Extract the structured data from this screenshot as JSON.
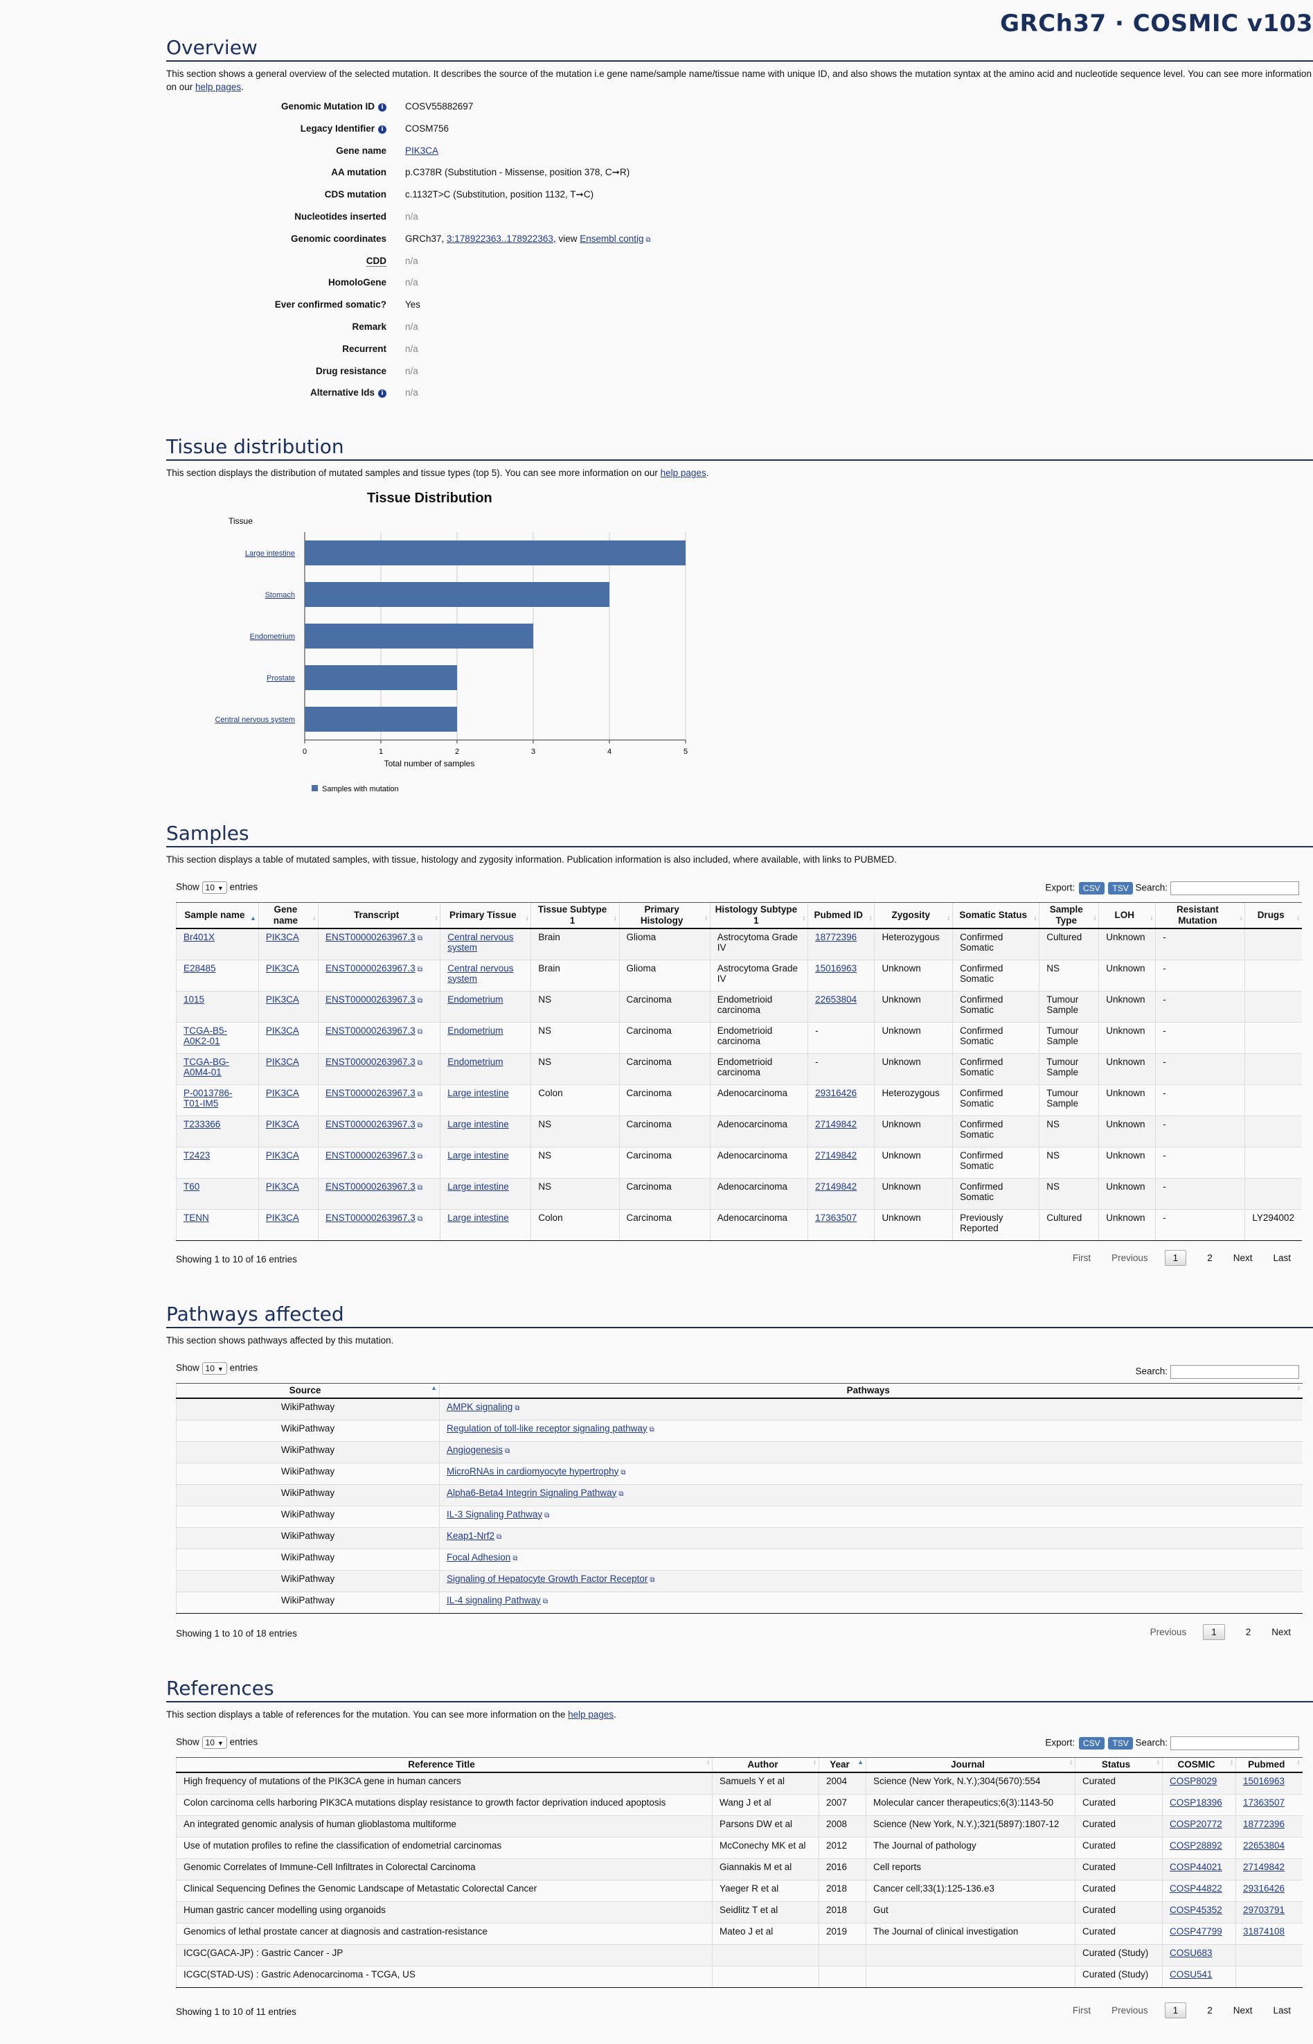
{
  "header": {
    "brand": "GRCh37 · COSMIC v103"
  },
  "overview": {
    "title": "Overview",
    "desc_pre": "This section shows a general overview of the selected mutation. It describes the source of the mutation i.e gene name/sample name/tissue name with unique ID, and also shows the mutation syntax at the amino acid and nucleotide sequence level. You can see more information on our ",
    "desc_link": "help pages",
    "desc_post": ".",
    "fields": [
      {
        "label": "Genomic Mutation ID",
        "info": true,
        "value": "COSV55882697"
      },
      {
        "label": "Legacy Identifier",
        "info": true,
        "value": "COSM756"
      },
      {
        "label": "Gene name",
        "value": "PIK3CA",
        "link": true
      },
      {
        "label": "AA mutation",
        "value": "p.C378R (Substitution - Missense, position 378, C➞R)"
      },
      {
        "label": "CDS mutation",
        "value": "c.1132T>C (Substitution, position 1132, T➞C)"
      },
      {
        "label": "Nucleotides inserted",
        "value": "n/a",
        "na": true
      },
      {
        "label": "Genomic coordinates",
        "value": "",
        "coord": true
      },
      {
        "label": "CDD",
        "value": "n/a",
        "na": true,
        "abbr": true
      },
      {
        "label": "HomoloGene",
        "value": "n/a",
        "na": true
      },
      {
        "label": "Ever confirmed somatic?",
        "value": "Yes"
      },
      {
        "label": "Remark",
        "value": "n/a",
        "na": true
      },
      {
        "label": "Recurrent",
        "value": "n/a",
        "na": true
      },
      {
        "label": "Drug resistance",
        "value": "n/a",
        "na": true
      },
      {
        "label": "Alternative Ids",
        "info": true,
        "value": "n/a",
        "na": true
      }
    ],
    "coords": {
      "prefix": "GRCh37, ",
      "link": "3:178922363..178922363",
      "mid": ", view ",
      "ensembl": "Ensembl contig"
    }
  },
  "tissue": {
    "title": "Tissue distribution",
    "desc_pre": "This section displays the distribution of mutated samples and tissue types (top 5). You can see more information on our ",
    "desc_link": "help pages",
    "desc_post": "."
  },
  "chart_data": {
    "type": "bar",
    "orientation": "horizontal",
    "title": "Tissue Distribution",
    "ylabel": "Tissue",
    "xlabel": "Total number of samples",
    "categories": [
      "Large intestine",
      "Stomach",
      "Endometrium",
      "Prostate",
      "Central nervous system"
    ],
    "series": [
      {
        "name": "Samples with mutation",
        "values": [
          5,
          4,
          3,
          2,
          2
        ]
      }
    ],
    "xlim": [
      0,
      5
    ],
    "xticks": [
      "0",
      "1",
      "2",
      "3",
      "4",
      "5"
    ],
    "legend": "bottom-left",
    "color": "#4a6fa5",
    "grid": true
  },
  "samples": {
    "title": "Samples",
    "desc": "This section displays a table of mutated samples, with tissue, histology and zygosity information. Publication information is also included, where available, with links to PUBMED.",
    "show": "Show",
    "entries_val": "10",
    "entries": "entries",
    "export": "Export:",
    "csv": "CSV",
    "tsv": "TSV",
    "search": "Search:",
    "headers": [
      "Sample name",
      "Gene name",
      "Transcript",
      "Primary Tissue",
      "Tissue Subtype 1",
      "Primary Histology",
      "Histology Subtype 1",
      "Pubmed ID",
      "Zygosity",
      "Somatic Status",
      "Sample Type",
      "LOH",
      "Resistant Mutation",
      "Drugs"
    ],
    "rows": [
      [
        "Br401X",
        "PIK3CA",
        "ENST00000263967.3",
        "Central nervous system",
        "Brain",
        "Glioma",
        "Astrocytoma Grade IV",
        "18772396",
        "Heterozygous",
        "Confirmed Somatic",
        "Cultured",
        "Unknown",
        "-",
        ""
      ],
      [
        "E28485",
        "PIK3CA",
        "ENST00000263967.3",
        "Central nervous system",
        "Brain",
        "Glioma",
        "Astrocytoma Grade IV",
        "15016963",
        "Unknown",
        "Confirmed Somatic",
        "NS",
        "Unknown",
        "-",
        ""
      ],
      [
        "1015",
        "PIK3CA",
        "ENST00000263967.3",
        "Endometrium",
        "NS",
        "Carcinoma",
        "Endometrioid carcinoma",
        "22653804",
        "Unknown",
        "Confirmed Somatic",
        "Tumour Sample",
        "Unknown",
        "-",
        ""
      ],
      [
        "TCGA-B5-A0K2-01",
        "PIK3CA",
        "ENST00000263967.3",
        "Endometrium",
        "NS",
        "Carcinoma",
        "Endometrioid carcinoma",
        "-",
        "Unknown",
        "Confirmed Somatic",
        "Tumour Sample",
        "Unknown",
        "-",
        ""
      ],
      [
        "TCGA-BG-A0M4-01",
        "PIK3CA",
        "ENST00000263967.3",
        "Endometrium",
        "NS",
        "Carcinoma",
        "Endometrioid carcinoma",
        "-",
        "Unknown",
        "Confirmed Somatic",
        "Tumour Sample",
        "Unknown",
        "-",
        ""
      ],
      [
        "P-0013786-T01-IM5",
        "PIK3CA",
        "ENST00000263967.3",
        "Large intestine",
        "Colon",
        "Carcinoma",
        "Adenocarcinoma",
        "29316426",
        "Heterozygous",
        "Confirmed Somatic",
        "Tumour Sample",
        "Unknown",
        "-",
        ""
      ],
      [
        "T233366",
        "PIK3CA",
        "ENST00000263967.3",
        "Large intestine",
        "NS",
        "Carcinoma",
        "Adenocarcinoma",
        "27149842",
        "Unknown",
        "Confirmed Somatic",
        "NS",
        "Unknown",
        "-",
        ""
      ],
      [
        "T2423",
        "PIK3CA",
        "ENST00000263967.3",
        "Large intestine",
        "NS",
        "Carcinoma",
        "Adenocarcinoma",
        "27149842",
        "Unknown",
        "Confirmed Somatic",
        "NS",
        "Unknown",
        "-",
        ""
      ],
      [
        "T60",
        "PIK3CA",
        "ENST00000263967.3",
        "Large intestine",
        "NS",
        "Carcinoma",
        "Adenocarcinoma",
        "27149842",
        "Unknown",
        "Confirmed Somatic",
        "NS",
        "Unknown",
        "-",
        ""
      ],
      [
        "TENN",
        "PIK3CA",
        "ENST00000263967.3",
        "Large intestine",
        "Colon",
        "Carcinoma",
        "Adenocarcinoma",
        "17363507",
        "Unknown",
        "Previously Reported",
        "Cultured",
        "Unknown",
        "-",
        "LY294002"
      ]
    ],
    "info": "Showing 1 to 10 of 16 entries",
    "pager": {
      "first": "First",
      "prev": "Previous",
      "p1": "1",
      "p2": "2",
      "next": "Next",
      "last": "Last"
    }
  },
  "pathways": {
    "title": "Pathways affected",
    "desc": "This section shows pathways affected by this mutation.",
    "show": "Show",
    "entries_val": "10",
    "entries": "entries",
    "search": "Search:",
    "headers": [
      "Source",
      "Pathways"
    ],
    "rows": [
      [
        "WikiPathway",
        "AMPK signaling"
      ],
      [
        "WikiPathway",
        "Regulation of toll-like receptor signaling pathway"
      ],
      [
        "WikiPathway",
        "Angiogenesis"
      ],
      [
        "WikiPathway",
        "MicroRNAs in cardiomyocyte hypertrophy"
      ],
      [
        "WikiPathway",
        "Alpha6-Beta4 Integrin Signaling Pathway"
      ],
      [
        "WikiPathway",
        "IL-3 Signaling Pathway"
      ],
      [
        "WikiPathway",
        "Keap1-Nrf2"
      ],
      [
        "WikiPathway",
        "Focal Adhesion"
      ],
      [
        "WikiPathway",
        "Signaling of Hepatocyte Growth Factor Receptor"
      ],
      [
        "WikiPathway",
        "IL-4 signaling Pathway"
      ]
    ],
    "info": "Showing 1 to 10 of 18 entries",
    "pager": {
      "prev": "Previous",
      "p1": "1",
      "p2": "2",
      "next": "Next"
    }
  },
  "references": {
    "title": "References",
    "desc_pre": "This section displays a table of references for the mutation. You can see more information on the ",
    "desc_link": "help pages",
    "desc_post": ".",
    "show": "Show",
    "entries_val": "10",
    "entries": "entries",
    "export": "Export:",
    "csv": "CSV",
    "tsv": "TSV",
    "search": "Search:",
    "headers": [
      "Reference Title",
      "Author",
      "Year",
      "Journal",
      "Status",
      "COSMIC",
      "Pubmed"
    ],
    "rows": [
      [
        "High frequency of mutations of the PIK3CA gene in human cancers",
        "Samuels Y et al",
        "2004",
        "Science (New York, N.Y.);304(5670):554",
        "Curated",
        "COSP8029",
        "15016963"
      ],
      [
        "Colon carcinoma cells harboring PIK3CA mutations display resistance to growth factor deprivation induced apoptosis",
        "Wang J et al",
        "2007",
        "Molecular cancer therapeutics;6(3):1143-50",
        "Curated",
        "COSP18396",
        "17363507"
      ],
      [
        "An integrated genomic analysis of human glioblastoma multiforme",
        "Parsons DW et al",
        "2008",
        "Science (New York, N.Y.);321(5897):1807-12",
        "Curated",
        "COSP20772",
        "18772396"
      ],
      [
        "Use of mutation profiles to refine the classification of endometrial carcinomas",
        "McConechy MK et al",
        "2012",
        "The Journal of pathology",
        "Curated",
        "COSP28892",
        "22653804"
      ],
      [
        "Genomic Correlates of Immune-Cell Infiltrates in Colorectal Carcinoma",
        "Giannakis M et al",
        "2016",
        "Cell reports",
        "Curated",
        "COSP44021",
        "27149842"
      ],
      [
        "Clinical Sequencing Defines the Genomic Landscape of Metastatic Colorectal Cancer",
        "Yaeger R et al",
        "2018",
        "Cancer cell;33(1):125-136.e3",
        "Curated",
        "COSP44822",
        "29316426"
      ],
      [
        "Human gastric cancer modelling using organoids",
        "Seidlitz T et al",
        "2018",
        "Gut",
        "Curated",
        "COSP45352",
        "29703791"
      ],
      [
        "Genomics of lethal prostate cancer at diagnosis and castration-resistance",
        "Mateo J et al",
        "2019",
        "The Journal of clinical investigation",
        "Curated",
        "COSP47799",
        "31874108"
      ],
      [
        "ICGC(GACA-JP) : Gastric Cancer - JP",
        "",
        "",
        "",
        "Curated (Study)",
        "COSU683",
        ""
      ],
      [
        "ICGC(STAD-US) : Gastric Adenocarcinoma - TCGA, US",
        "",
        "",
        "",
        "Curated (Study)",
        "COSU541",
        ""
      ]
    ],
    "info": "Showing 1 to 10 of 11 entries",
    "pager": {
      "first": "First",
      "prev": "Previous",
      "p1": "1",
      "p2": "2",
      "next": "Next",
      "last": "Last"
    }
  }
}
